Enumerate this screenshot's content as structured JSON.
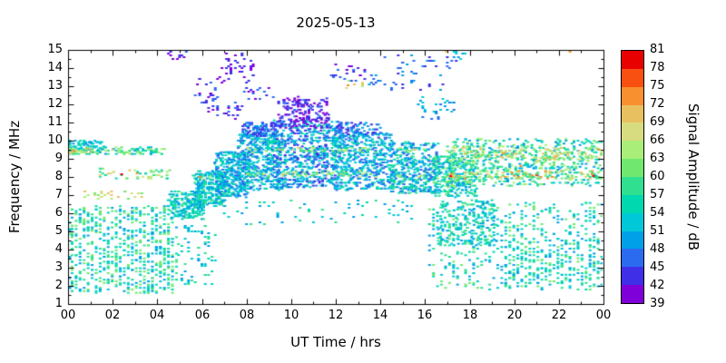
{
  "title": "2025-05-13",
  "axes": {
    "x_label": "UT Time / hrs",
    "y_label": "Frequency / MHz",
    "x_range": [
      0,
      24
    ],
    "y_range": [
      1,
      15
    ],
    "x_tick_labels": [
      "00",
      "02",
      "04",
      "06",
      "08",
      "10",
      "12",
      "14",
      "16",
      "18",
      "20",
      "22",
      "00"
    ],
    "y_tick_labels": [
      "1",
      "2",
      "3",
      "4",
      "5",
      "6",
      "7",
      "8",
      "9",
      "10",
      "11",
      "12",
      "13",
      "14",
      "15"
    ]
  },
  "colorbar": {
    "label": "Signal Amplitude / dB",
    "range": [
      39,
      81
    ],
    "step": 3,
    "tick_labels": [
      "39",
      "42",
      "45",
      "48",
      "51",
      "54",
      "57",
      "60",
      "63",
      "66",
      "69",
      "72",
      "75",
      "78",
      "81"
    ],
    "palette": [
      "#7f00d9",
      "#3f30e8",
      "#2b6bf0",
      "#00a0e8",
      "#00c8d8",
      "#00d8b0",
      "#30e090",
      "#70e870",
      "#a8ee78",
      "#d8dc80",
      "#e8c060",
      "#f89030",
      "#f85010",
      "#e80000"
    ]
  },
  "chart_data": {
    "type": "scatter",
    "title": "2025-05-13",
    "xlabel": "UT Time / hrs",
    "ylabel": "Frequency / MHz",
    "value_label": "Signal Amplitude / dB",
    "xlim": [
      0,
      24
    ],
    "ylim": [
      1,
      15
    ],
    "value_range": [
      39,
      81
    ],
    "seed": 12345,
    "marker_px": [
      3,
      2
    ],
    "clusters": [
      {
        "t": [
          0.05,
          4.9
        ],
        "f": [
          1.6,
          6.4
        ],
        "amp": [
          48,
          63
        ],
        "n": 650,
        "qt": 0.18,
        "qf": 0.09
      },
      {
        "t": [
          0.0,
          4.3
        ],
        "f": [
          9.25,
          9.65
        ],
        "amp": [
          48,
          66
        ],
        "n": 130,
        "qt": 0.12,
        "qf": 0.09
      },
      {
        "t": [
          0.0,
          1.6
        ],
        "f": [
          9.4,
          10.0
        ],
        "amp": [
          48,
          57
        ],
        "n": 60,
        "qt": 0.08,
        "qf": 0.08
      },
      {
        "t": [
          0.0,
          1.2
        ],
        "f": [
          9.3,
          9.6
        ],
        "amp": [
          63,
          72
        ],
        "n": 18,
        "qt": 0.1,
        "qf": 0.09
      },
      {
        "t": [
          0.7,
          3.3
        ],
        "f": [
          6.75,
          7.2
        ],
        "amp": [
          60,
          72
        ],
        "n": 26,
        "qt": 0.15,
        "qf": 0.1
      },
      {
        "t": [
          1.4,
          4.6
        ],
        "f": [
          7.9,
          8.45
        ],
        "amp": [
          54,
          70
        ],
        "n": 45,
        "qt": 0.12,
        "qf": 0.09
      },
      {
        "t": [
          4.5,
          6.1
        ],
        "f": [
          5.7,
          7.2
        ],
        "amp": [
          48,
          60
        ],
        "n": 230,
        "qt": 0.08,
        "qf": 0.08
      },
      {
        "t": [
          5.6,
          7.1
        ],
        "f": [
          6.4,
          8.3
        ],
        "amp": [
          48,
          60
        ],
        "n": 260,
        "qt": 0.08,
        "qf": 0.08
      },
      {
        "t": [
          6.6,
          8.1
        ],
        "f": [
          6.9,
          9.4
        ],
        "amp": [
          45,
          57
        ],
        "n": 330,
        "qt": 0.07,
        "qf": 0.08
      },
      {
        "t": [
          7.6,
          9.6
        ],
        "f": [
          7.3,
          10.4
        ],
        "amp": [
          45,
          57
        ],
        "n": 430,
        "qt": 0.07,
        "qf": 0.08
      },
      {
        "t": [
          9.2,
          12.1
        ],
        "f": [
          7.4,
          11.1
        ],
        "amp": [
          42,
          57
        ],
        "n": 600,
        "qt": 0.07,
        "qf": 0.08
      },
      {
        "t": [
          9.4,
          11.7
        ],
        "f": [
          10.7,
          12.3
        ],
        "amp": [
          39,
          47
        ],
        "n": 150,
        "qt": 0.08,
        "qf": 0.09
      },
      {
        "t": [
          11.9,
          14.6
        ],
        "f": [
          7.3,
          10.4
        ],
        "amp": [
          45,
          57
        ],
        "n": 500,
        "qt": 0.07,
        "qf": 0.08
      },
      {
        "t": [
          14.4,
          16.6
        ],
        "f": [
          7.1,
          9.9
        ],
        "amp": [
          45,
          60
        ],
        "n": 380,
        "qt": 0.07,
        "qf": 0.08
      },
      {
        "t": [
          16.4,
          18.3
        ],
        "f": [
          6.9,
          9.2
        ],
        "amp": [
          48,
          63
        ],
        "n": 280,
        "qt": 0.08,
        "qf": 0.08
      },
      {
        "t": [
          7.8,
          9.3
        ],
        "f": [
          10.2,
          11.0
        ],
        "amp": [
          42,
          51
        ],
        "n": 120,
        "qt": 0.08,
        "qf": 0.09
      },
      {
        "t": [
          12.0,
          14.0
        ],
        "f": [
          10.2,
          11.0
        ],
        "amp": [
          42,
          51
        ],
        "n": 90,
        "qt": 0.08,
        "qf": 0.09
      },
      {
        "t": [
          8.0,
          16.0
        ],
        "f": [
          8.0,
          8.3
        ],
        "amp": [
          57,
          69
        ],
        "n": 60,
        "qt": 0.12,
        "qf": 0.08
      },
      {
        "t": [
          8.0,
          16.0
        ],
        "f": [
          9.35,
          9.6
        ],
        "amp": [
          57,
          69
        ],
        "n": 50,
        "qt": 0.12,
        "qf": 0.08
      },
      {
        "t": [
          4.9,
          6.6
        ],
        "f": [
          2.0,
          5.4
        ],
        "amp": [
          48,
          60
        ],
        "n": 70,
        "qt": 0.15,
        "qf": 0.1
      },
      {
        "t": [
          6.8,
          15.5
        ],
        "f": [
          5.4,
          6.7
        ],
        "amp": [
          48,
          60
        ],
        "n": 60,
        "qt": 0.2,
        "qf": 0.1
      },
      {
        "t": [
          16.2,
          23.95
        ],
        "f": [
          1.8,
          6.6
        ],
        "amp": [
          48,
          63
        ],
        "n": 500,
        "qt": 0.18,
        "qf": 0.09
      },
      {
        "t": [
          16.6,
          19.2
        ],
        "f": [
          4.2,
          6.7
        ],
        "amp": [
          48,
          60
        ],
        "n": 220,
        "qt": 0.1,
        "qf": 0.08
      },
      {
        "t": [
          19.5,
          23.9
        ],
        "f": [
          2.0,
          4.6
        ],
        "amp": [
          48,
          60
        ],
        "n": 150,
        "qt": 0.18,
        "qf": 0.09
      },
      {
        "t": [
          17.0,
          23.95
        ],
        "f": [
          7.5,
          10.1
        ],
        "amp": [
          48,
          66
        ],
        "n": 550,
        "qt": 0.09,
        "qf": 0.08
      },
      {
        "t": [
          17.0,
          23.95
        ],
        "f": [
          8.9,
          9.7
        ],
        "amp": [
          57,
          72
        ],
        "n": 170,
        "qt": 0.1,
        "qf": 0.08
      },
      {
        "t": [
          17.0,
          23.95
        ],
        "f": [
          7.9,
          8.35
        ],
        "amp": [
          57,
          74
        ],
        "n": 110,
        "qt": 0.1,
        "qf": 0.08
      },
      {
        "t": [
          6.8,
          8.4
        ],
        "f": [
          13.2,
          14.8
        ],
        "amp": [
          39,
          45
        ],
        "n": 40,
        "qt": 0.1,
        "qf": 0.1
      },
      {
        "t": [
          5.7,
          6.7
        ],
        "f": [
          12.1,
          13.5
        ],
        "amp": [
          39,
          48
        ],
        "n": 20,
        "qt": 0.1,
        "qf": 0.1
      },
      {
        "t": [
          11.7,
          13.3
        ],
        "f": [
          13.3,
          14.2
        ],
        "amp": [
          39,
          48
        ],
        "n": 24,
        "qt": 0.1,
        "qf": 0.1
      },
      {
        "t": [
          14.1,
          17.4
        ],
        "f": [
          12.8,
          14.7
        ],
        "amp": [
          42,
          51
        ],
        "n": 45,
        "qt": 0.1,
        "qf": 0.1
      },
      {
        "t": [
          15.7,
          17.4
        ],
        "f": [
          11.2,
          12.4
        ],
        "amp": [
          45,
          54
        ],
        "n": 32,
        "qt": 0.1,
        "qf": 0.1
      },
      {
        "t": [
          9.7,
          10.7
        ],
        "f": [
          11.4,
          12.4
        ],
        "amp": [
          39,
          45
        ],
        "n": 26,
        "qt": 0.08,
        "qf": 0.09
      },
      {
        "t": [
          4.5,
          5.4
        ],
        "f": [
          14.3,
          15.0
        ],
        "amp": [
          39,
          48
        ],
        "n": 10,
        "qt": 0.1,
        "qf": 0.1
      },
      {
        "t": [
          17.3,
          18.0
        ],
        "f": [
          14.5,
          15.0
        ],
        "amp": [
          48,
          54
        ],
        "n": 9,
        "qt": 0.1,
        "qf": 0.1
      },
      {
        "t": [
          12.2,
          13.4
        ],
        "f": [
          12.9,
          13.3
        ],
        "amp": [
          60,
          72
        ],
        "n": 7,
        "qt": 0.12,
        "qf": 0.1
      },
      {
        "t": [
          7.7,
          9.3
        ],
        "f": [
          12.2,
          12.9
        ],
        "amp": [
          39,
          48
        ],
        "n": 15,
        "qt": 0.1,
        "qf": 0.1
      },
      {
        "t": [
          6.0,
          6.9
        ],
        "f": [
          11.3,
          12.6
        ],
        "amp": [
          39,
          48
        ],
        "n": 14,
        "qt": 0.1,
        "qf": 0.1
      },
      {
        "t": [
          7.0,
          7.8
        ],
        "f": [
          11.0,
          12.1
        ],
        "amp": [
          39,
          48
        ],
        "n": 16,
        "qt": 0.1,
        "qf": 0.1
      },
      {
        "t": [
          13.5,
          14.3
        ],
        "f": [
          12.9,
          13.6
        ],
        "amp": [
          42,
          51
        ],
        "n": 10,
        "qt": 0.1,
        "qf": 0.1
      }
    ],
    "points": [
      [
        2.4,
        8.15,
        81
      ],
      [
        0.25,
        9.45,
        72
      ],
      [
        3.1,
        8.2,
        72
      ],
      [
        17.15,
        8.05,
        79
      ],
      [
        21.0,
        8.1,
        76
      ],
      [
        23.55,
        8.05,
        79
      ],
      [
        23.8,
        9.5,
        72
      ],
      [
        12.55,
        13.05,
        72
      ],
      [
        16.95,
        14.95,
        71
      ],
      [
        22.5,
        14.95,
        72
      ],
      [
        0.1,
        9.3,
        66
      ],
      [
        5.9,
        8.0,
        72
      ],
      [
        6.1,
        7.9,
        66
      ],
      [
        19.5,
        9.3,
        74
      ],
      [
        20.3,
        8.6,
        72
      ],
      [
        2.0,
        9.5,
        69
      ],
      [
        3.6,
        9.5,
        63
      ]
    ]
  }
}
